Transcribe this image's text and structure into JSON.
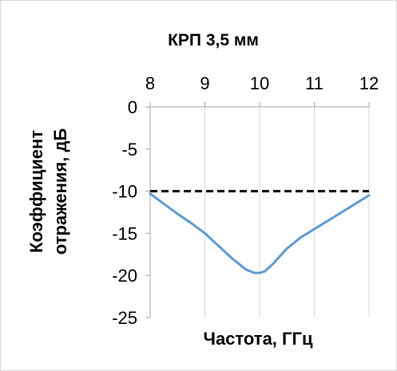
{
  "chart_data": {
    "type": "line",
    "title": "КРП 3,5 мм",
    "xlabel": "Частота, ГГц",
    "ylabel": [
      "Коэффициент",
      "отражения, дБ"
    ],
    "xlim": [
      8,
      12
    ],
    "ylim": [
      -25,
      0
    ],
    "x_ticks": [
      8,
      9,
      10,
      11,
      12
    ],
    "y_ticks": [
      0,
      -5,
      -10,
      -15,
      -20,
      -25
    ],
    "x_axis_position": "top",
    "grid": "vertical",
    "legend": "none",
    "series": [
      {
        "style": "solid",
        "color": "#5B9BD5",
        "x": [
          8.0,
          8.25,
          8.5,
          8.75,
          9.0,
          9.25,
          9.5,
          9.75,
          9.9,
          10.0,
          10.1,
          10.25,
          10.5,
          10.75,
          11.0,
          11.25,
          11.5,
          11.75,
          12.0
        ],
        "y": [
          -10.3,
          -11.5,
          -12.7,
          -13.8,
          -15.0,
          -16.5,
          -18.0,
          -19.3,
          -19.7,
          -19.7,
          -19.5,
          -18.6,
          -16.8,
          -15.5,
          -14.5,
          -13.5,
          -12.5,
          -11.5,
          -10.5
        ]
      },
      {
        "style": "dashed",
        "color": "#000000",
        "x": [
          8,
          12
        ],
        "y": [
          -10,
          -10
        ]
      }
    ]
  }
}
